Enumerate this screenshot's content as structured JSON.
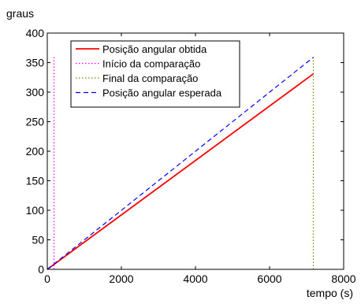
{
  "chart_data": {
    "type": "line",
    "ylabel": "graus",
    "xlabel": "tempo (s)",
    "xlim": [
      0,
      8000
    ],
    "ylim": [
      0,
      400
    ],
    "x_ticks": [
      0,
      2000,
      4000,
      6000,
      8000
    ],
    "y_ticks": [
      0,
      50,
      100,
      150,
      200,
      250,
      300,
      350,
      400
    ],
    "grid": false,
    "legend_position": "top-left",
    "series": [
      {
        "name": "Posição angular obtida",
        "color": "#ff0000",
        "style": "solid",
        "x": [
          0,
          7180
        ],
        "y": [
          0,
          331
        ]
      },
      {
        "name": "Início da comparação",
        "color": "#ff00ff",
        "style": "dotted",
        "x": [
          180,
          180
        ],
        "y": [
          0,
          362
        ]
      },
      {
        "name": "Final da comparação",
        "color": "#808000",
        "style": "dotted",
        "x": [
          7180,
          7180
        ],
        "y": [
          0,
          362
        ]
      },
      {
        "name": "Posição angular esperada",
        "color": "#0000ff",
        "style": "dashed",
        "x": [
          0,
          7180
        ],
        "y": [
          0,
          359
        ]
      }
    ]
  }
}
